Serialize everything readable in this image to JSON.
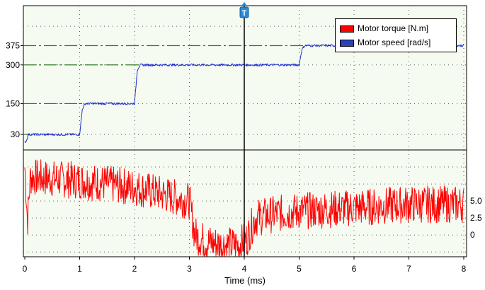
{
  "chart_data": [
    {
      "type": "line",
      "panel": "top",
      "series": [
        {
          "name": "Motor speed [rad/s]",
          "color": "#1f2fd0",
          "x": [
            0,
            0.04,
            0.06,
            0.1,
            1.0,
            1.05,
            1.1,
            2.0,
            2.05,
            2.1,
            5.0,
            5.05,
            5.1,
            8.0
          ],
          "values": [
            0,
            10,
            30,
            30,
            30,
            130,
            150,
            150,
            280,
            300,
            300,
            360,
            375,
            375
          ]
        }
      ],
      "reference_lines": [
        375,
        300,
        150,
        30
      ],
      "yticks": [
        "375",
        "300",
        "150",
        "30"
      ],
      "ylim": [
        -30,
        530
      ]
    },
    {
      "type": "line",
      "panel": "bottom",
      "series": [
        {
          "name": "Motor torque [N.m]",
          "color": "#ff0000",
          "x": [
            0,
            0.05,
            0.1,
            1.0,
            2.0,
            2.5,
            3.0,
            3.1,
            3.3,
            3.6,
            3.9,
            4.05,
            4.2,
            4.5,
            5.0,
            6.0,
            7.0,
            8.0
          ],
          "values": [
            10,
            2,
            8.5,
            8.0,
            7.0,
            6.0,
            5.0,
            0,
            -1.0,
            -1.5,
            -1.5,
            -0.5,
            2.5,
            3.0,
            3.5,
            4.0,
            4.5,
            4.5
          ]
        }
      ],
      "yticks": [
        "5.0",
        "2.5",
        "0"
      ],
      "ylim": [
        -3.2,
        12.5
      ]
    }
  ],
  "x_axis": {
    "label": "Time (ms)",
    "ticks": [
      "0",
      "1",
      "2",
      "3",
      "4",
      "5",
      "6",
      "7",
      "8"
    ],
    "range": [
      0,
      8
    ]
  },
  "cursor": {
    "x": 4.0,
    "label": "T"
  },
  "legend": {
    "position": "top-right",
    "items": [
      {
        "label": "Motor torque [N.m]",
        "color": "#ff0000"
      },
      {
        "label": "Motor speed [rad/s]",
        "color": "#2a43b8"
      }
    ]
  },
  "plot_background": "#f5fbf1",
  "grid": true
}
